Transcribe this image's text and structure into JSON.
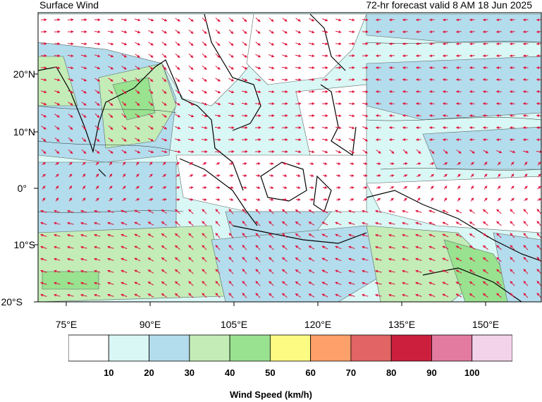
{
  "header": {
    "title": "Surface Wind",
    "valid_time": "72-hr forecast valid 8 AM 18 Jun 2025"
  },
  "axes": {
    "lat_labels": [
      "20°N",
      "10°N",
      "0°",
      "10°S",
      "20°S"
    ],
    "lat_values": [
      20,
      10,
      0,
      -10,
      -20
    ],
    "lon_labels": [
      "75°E",
      "90°E",
      "105°E",
      "120°E",
      "135°E",
      "150°E"
    ],
    "lon_values": [
      75,
      90,
      105,
      120,
      135,
      150
    ],
    "lon_range": [
      70,
      165
    ],
    "lat_range": [
      -20,
      30
    ]
  },
  "colorbar": {
    "title": "Wind Speed (km/h)",
    "tick_labels": [
      "10",
      "20",
      "30",
      "40",
      "50",
      "60",
      "70",
      "80",
      "90",
      "100"
    ],
    "colors": [
      "#ffffff",
      "#d9f7f4",
      "#b3dcec",
      "#c3ecb7",
      "#99e28f",
      "#fefb82",
      "#fea06a",
      "#e26464",
      "#cc1f3e",
      "#e37ba1",
      "#f3d3ea"
    ]
  },
  "style": {
    "arrow_color": "#e0143c",
    "coast_color": "#000000"
  }
}
